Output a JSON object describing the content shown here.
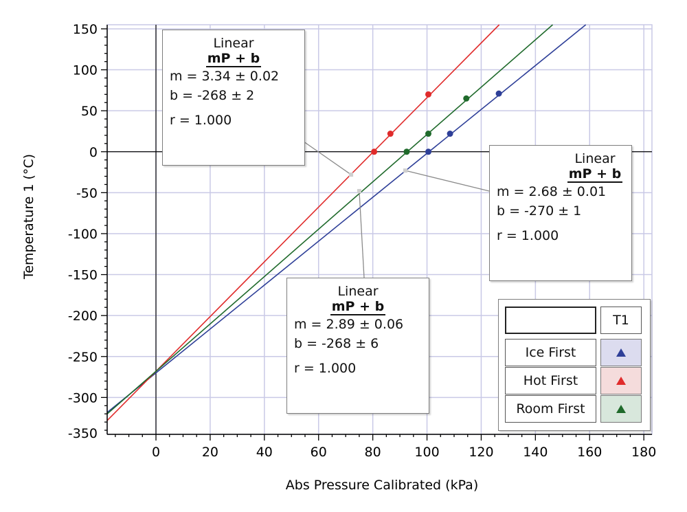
{
  "chart_data": {
    "type": "scatter",
    "xlabel": "Abs Pressure Calibrated (kPa)",
    "ylabel": "Temperature 1 (°C)",
    "xlim": [
      -18,
      183
    ],
    "ylim": [
      -345,
      155
    ],
    "xticks": [
      0,
      20,
      40,
      60,
      80,
      100,
      120,
      140,
      160,
      180
    ],
    "yticks": [
      150,
      100,
      50,
      0,
      -50,
      -100,
      -150,
      -200,
      -250,
      -300,
      -350
    ],
    "grid": true,
    "series": [
      {
        "name": "Ice First",
        "color": "#2e3f98",
        "points": [
          [
            100.5,
            0
          ],
          [
            108.5,
            22
          ],
          [
            126.5,
            71
          ]
        ],
        "fit": {
          "m": 2.68,
          "b": -270
        }
      },
      {
        "name": "Hot First",
        "color": "#e02b2b",
        "points": [
          [
            80.5,
            0
          ],
          [
            86.5,
            22
          ],
          [
            100.5,
            70
          ]
        ],
        "fit": {
          "m": 3.34,
          "b": -268
        }
      },
      {
        "name": "Room First",
        "color": "#1f6a2b",
        "points": [
          [
            92.5,
            0
          ],
          [
            100.5,
            22
          ],
          [
            114.5,
            65
          ]
        ],
        "fit": {
          "m": 2.89,
          "b": -268
        }
      }
    ],
    "fit_boxes": [
      {
        "series": "Hot First",
        "title": "Linear",
        "model": "mP + b",
        "m": "m = 3.34 ± 0.02",
        "b": "b  = -268 ± 2",
        "r": "r = 1.000",
        "anchor": [
          72,
          -28
        ]
      },
      {
        "series": "Ice First",
        "title": "Linear",
        "model": "mP + b",
        "m": "m = 2.68 ± 0.01",
        "b": "b  = -270 ± 1",
        "r": "r = 1.000",
        "anchor": [
          92,
          -23
        ]
      },
      {
        "series": "Room First",
        "title": "Linear",
        "model": "mP + b",
        "m": "m = 2.89 ± 0.06",
        "b": "b  = -268 ± 6",
        "r": "r = 1.000",
        "anchor": [
          75,
          -48
        ]
      }
    ],
    "legend": {
      "header": "T1",
      "entries": [
        "Ice First",
        "Hot First",
        "Room First"
      ],
      "swatch_bg": [
        "#dcdcef",
        "#f5dcdc",
        "#d8e7dc"
      ]
    }
  }
}
